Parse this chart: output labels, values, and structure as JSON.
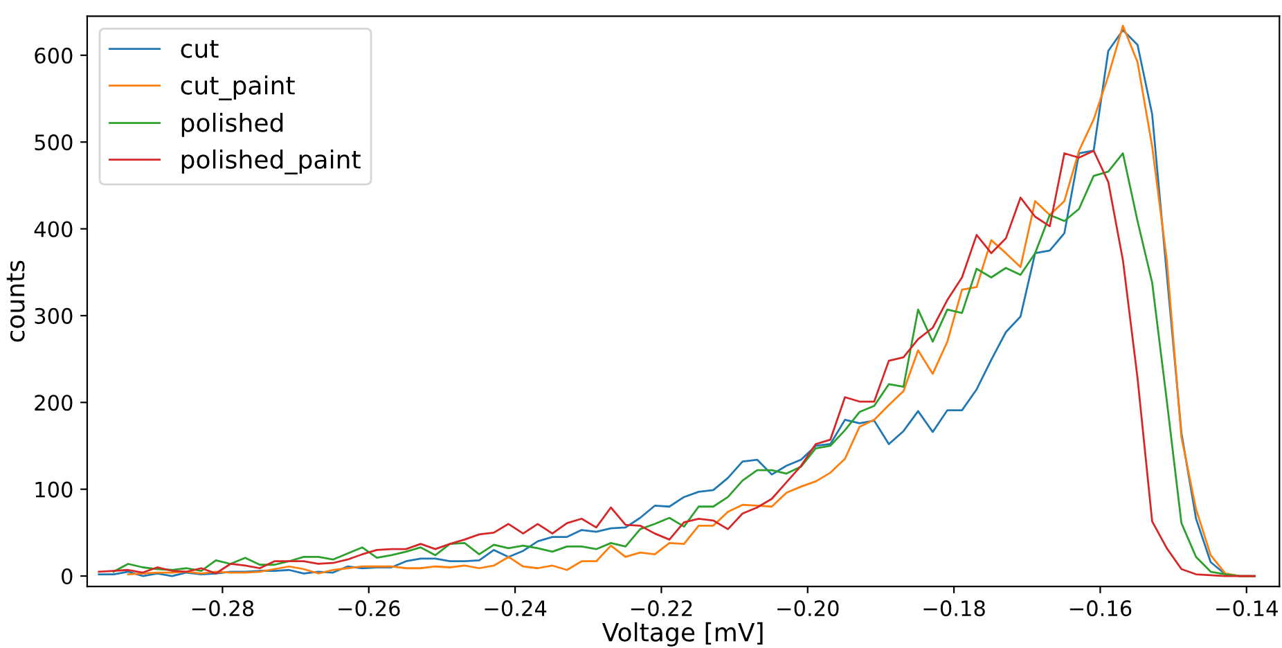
{
  "chart_data": {
    "type": "line",
    "xlabel": "Voltage [mV]",
    "ylabel": "counts",
    "x": [
      -0.2969,
      -0.2949,
      -0.2929,
      -0.2909,
      -0.2889,
      -0.2869,
      -0.2849,
      -0.2829,
      -0.2809,
      -0.2789,
      -0.2769,
      -0.2749,
      -0.2729,
      -0.2709,
      -0.2689,
      -0.2669,
      -0.2649,
      -0.2629,
      -0.2609,
      -0.2589,
      -0.2569,
      -0.2549,
      -0.2529,
      -0.2509,
      -0.2489,
      -0.2469,
      -0.2449,
      -0.2429,
      -0.2409,
      -0.2389,
      -0.2369,
      -0.2349,
      -0.2329,
      -0.2309,
      -0.2289,
      -0.2269,
      -0.2249,
      -0.2229,
      -0.2209,
      -0.2189,
      -0.2169,
      -0.2149,
      -0.2129,
      -0.2109,
      -0.2089,
      -0.2069,
      -0.2049,
      -0.2029,
      -0.2009,
      -0.1989,
      -0.1969,
      -0.1949,
      -0.1929,
      -0.1909,
      -0.1889,
      -0.1869,
      -0.1849,
      -0.1829,
      -0.1809,
      -0.1789,
      -0.1769,
      -0.1749,
      -0.1729,
      -0.1709,
      -0.1689,
      -0.1669,
      -0.1649,
      -0.1629,
      -0.1609,
      -0.1589,
      -0.1569,
      -0.1549,
      -0.1529,
      -0.1509,
      -0.1489,
      -0.1469,
      -0.1449,
      -0.1429,
      -0.1409,
      -0.1389
    ],
    "series": [
      {
        "name": "cut",
        "color": "#1f77b4",
        "values": [
          2,
          2,
          5,
          0,
          3,
          0,
          4,
          2,
          3,
          5,
          5,
          6,
          6,
          7,
          3,
          5,
          4,
          11,
          9,
          10,
          10,
          17,
          20,
          20,
          17,
          17,
          18,
          30,
          22,
          29,
          40,
          45,
          45,
          53,
          51,
          55,
          56,
          67,
          81,
          80,
          91,
          97,
          99,
          113,
          132,
          134,
          117,
          127,
          134,
          150,
          152,
          180,
          176,
          179,
          152,
          167,
          190,
          166,
          191,
          191,
          215,
          249,
          281,
          299,
          372,
          375,
          395,
          487,
          490,
          605,
          629,
          612,
          532,
          348,
          165,
          66,
          16,
          2,
          0,
          0
        ]
      },
      {
        "name": "cut_paint",
        "color": "#ff7f0e",
        "values": [
          null,
          null,
          2,
          3,
          4,
          4,
          5,
          3,
          5,
          4,
          4,
          5,
          8,
          11,
          8,
          3,
          7,
          9,
          11,
          11,
          11,
          9,
          9,
          11,
          10,
          12,
          9,
          12,
          22,
          11,
          9,
          12,
          7,
          17,
          17,
          35,
          22,
          27,
          25,
          38,
          37,
          58,
          58,
          74,
          82,
          81,
          80,
          96,
          103,
          109,
          119,
          135,
          172,
          180,
          197,
          213,
          260,
          233,
          270,
          330,
          333,
          387,
          372,
          356,
          432,
          416,
          432,
          490,
          526,
          576,
          634,
          592,
          495,
          364,
          160,
          77,
          24,
          3,
          0,
          0
        ]
      },
      {
        "name": "polished",
        "color": "#2ca02c",
        "values": [
          null,
          5,
          14,
          10,
          8,
          7,
          9,
          6,
          18,
          14,
          21,
          13,
          13,
          17,
          22,
          22,
          19,
          26,
          33,
          21,
          24,
          28,
          33,
          24,
          37,
          38,
          25,
          36,
          32,
          35,
          32,
          28,
          34,
          34,
          31,
          38,
          34,
          54,
          60,
          67,
          57,
          80,
          80,
          91,
          110,
          122,
          122,
          118,
          126,
          147,
          150,
          168,
          189,
          196,
          221,
          218,
          307,
          270,
          307,
          303,
          354,
          344,
          355,
          347,
          372,
          416,
          409,
          423,
          461,
          466,
          487,
          409,
          338,
          202,
          61,
          22,
          5,
          2,
          0,
          0
        ]
      },
      {
        "name": "polished_paint",
        "color": "#d62728",
        "values": [
          5,
          6,
          7,
          4,
          10,
          6,
          5,
          9,
          3,
          14,
          12,
          9,
          17,
          17,
          17,
          14,
          15,
          19,
          25,
          30,
          31,
          31,
          37,
          31,
          37,
          42,
          48,
          50,
          60,
          49,
          60,
          49,
          61,
          66,
          56,
          79,
          59,
          58,
          49,
          42,
          62,
          66,
          64,
          54,
          72,
          79,
          89,
          108,
          127,
          152,
          157,
          206,
          201,
          201,
          248,
          252,
          273,
          286,
          318,
          344,
          393,
          372,
          389,
          436,
          414,
          403,
          487,
          482,
          490,
          454,
          364,
          228,
          63,
          32,
          8,
          2,
          1,
          0,
          0,
          0
        ]
      }
    ],
    "xlim": [
      -0.2985,
      -0.1355
    ],
    "xticks": [
      {
        "value": -0.28,
        "label": "−0.28"
      },
      {
        "value": -0.26,
        "label": "−0.26"
      },
      {
        "value": -0.24,
        "label": "−0.24"
      },
      {
        "value": -0.22,
        "label": "−0.22"
      },
      {
        "value": -0.2,
        "label": "−0.20"
      },
      {
        "value": -0.18,
        "label": "−0.18"
      },
      {
        "value": -0.16,
        "label": "−0.16"
      },
      {
        "value": -0.14,
        "label": "−0.14"
      }
    ],
    "ylim": [
      -12,
      645
    ],
    "yticks": [
      0,
      100,
      200,
      300,
      400,
      500,
      600
    ],
    "grid": false,
    "legend": "top left",
    "marker": "none",
    "line_style": "solid"
  }
}
